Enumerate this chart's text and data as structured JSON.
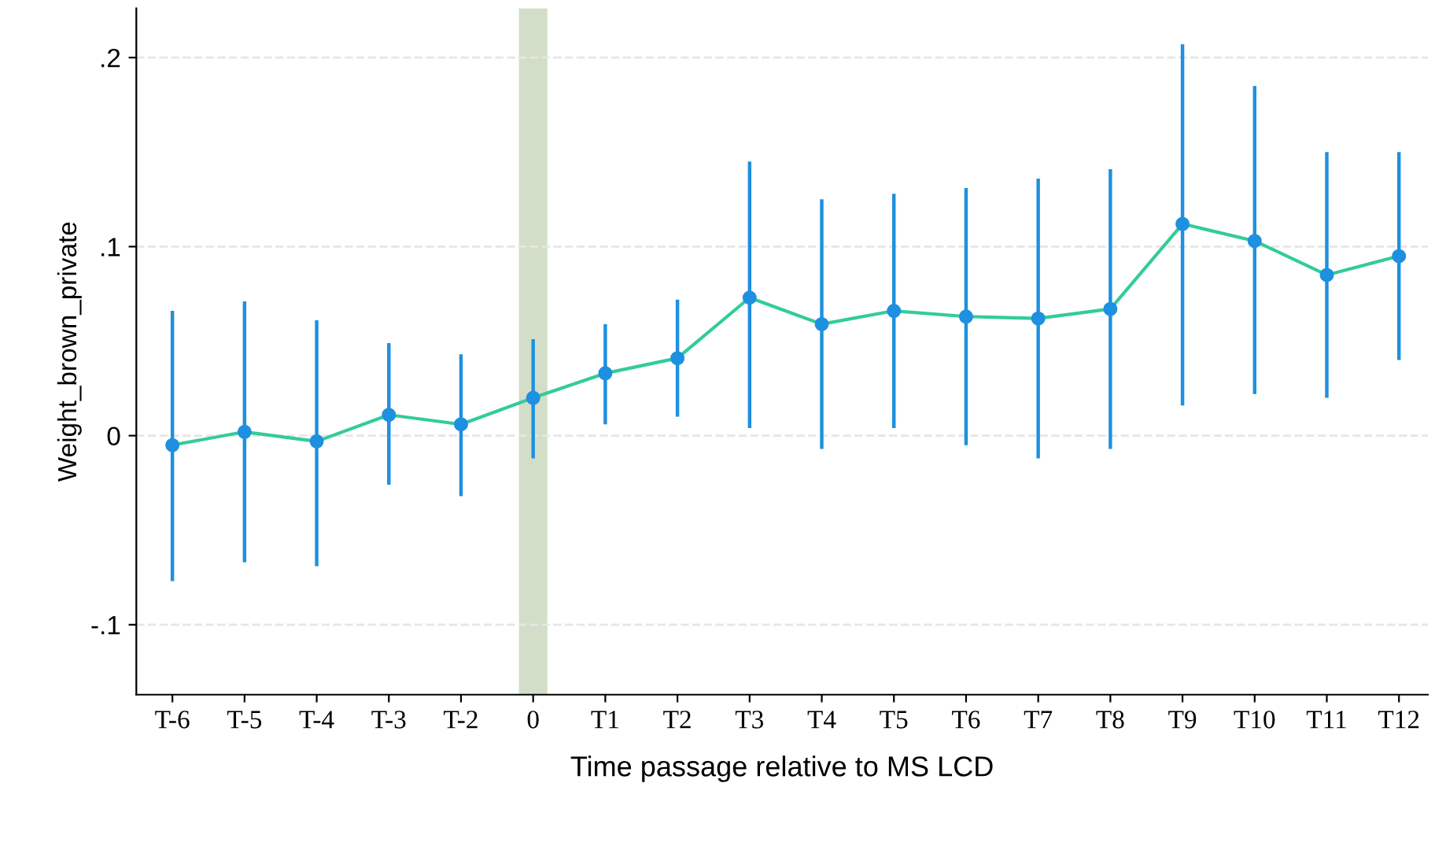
{
  "chart_data": {
    "type": "line",
    "xlabel": "Time passage relative to MS LCD",
    "ylabel": "Weight_brown_private",
    "categories": [
      "T-6",
      "T-5",
      "T-4",
      "T-3",
      "T-2",
      "0",
      "T1",
      "T2",
      "T3",
      "T4",
      "T5",
      "T6",
      "T7",
      "T8",
      "T9",
      "T10",
      "T11",
      "T12"
    ],
    "series": [
      {
        "color": "#33cc99",
        "colors": [
          "#1e90e0",
          "#1e90e0",
          "#1e90e0",
          "#1e90e0",
          "#1e90e0",
          "#1e90e0",
          "#1e90e0",
          "#1e90e0",
          "#1e90e0",
          "#1e90e0",
          "#1e90e0",
          "#1e90e0",
          "#1e90e0",
          "#1e90e0",
          "#1e90e0",
          "#1e90e0",
          "#1e90e0",
          "#1e90e0"
        ],
        "values": [
          -0.005,
          0.002,
          -0.003,
          0.011,
          0.006,
          0.02,
          0.033,
          0.041,
          0.073,
          0.059,
          0.066,
          0.063,
          0.062,
          0.067,
          0.112,
          0.103,
          0.085,
          0.095
        ],
        "errors": [
          [
            -0.077,
            0.066
          ],
          [
            -0.067,
            0.071
          ],
          [
            -0.069,
            0.061
          ],
          [
            -0.026,
            0.049
          ],
          [
            -0.032,
            0.043
          ],
          [
            -0.012,
            0.051
          ],
          [
            0.006,
            0.059
          ],
          [
            0.01,
            0.072
          ],
          [
            0.004,
            0.145
          ],
          [
            -0.007,
            0.125
          ],
          [
            0.004,
            0.128
          ],
          [
            -0.005,
            0.131
          ],
          [
            -0.012,
            0.136
          ],
          [
            -0.007,
            0.141
          ],
          [
            0.016,
            0.207
          ],
          [
            0.022,
            0.185
          ],
          [
            0.02,
            0.15
          ],
          [
            0.04,
            0.15
          ]
        ]
      }
    ],
    "ylim": [
      -0.137,
      0.226
    ],
    "yticks": [
      {
        "value": -0.1,
        "label": "-.1"
      },
      {
        "value": 0,
        "label": "0"
      },
      {
        "value": 0.1,
        "label": ".1"
      },
      {
        "value": 0.2,
        "label": ".2"
      }
    ],
    "ref_lines": [
      {
        "axis": "x",
        "value": "0",
        "color": "#d3dec8"
      }
    ],
    "grid": "y",
    "marker": "circle",
    "line_style": "solid"
  }
}
